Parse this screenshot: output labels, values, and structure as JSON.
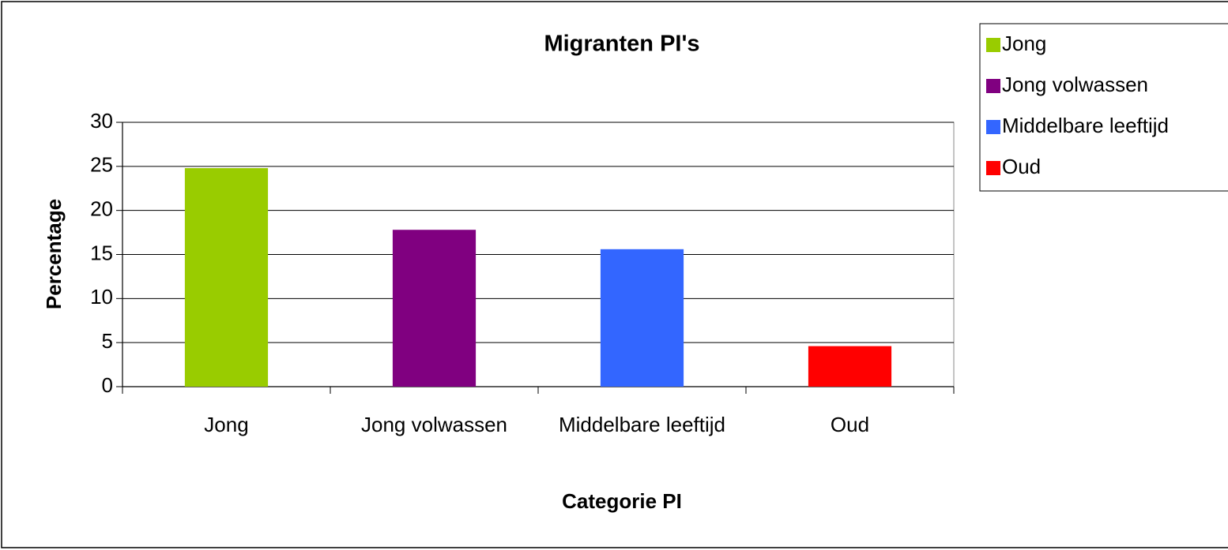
{
  "chart_data": {
    "type": "bar",
    "title": "Migranten PI's",
    "x_label": "Categorie PI",
    "y_label": "Percentage",
    "categories": [
      "Jong",
      "Jong volwassen",
      "Middelbare leeftijd",
      "Oud"
    ],
    "values": [
      24.8,
      17.8,
      15.6,
      4.6
    ],
    "colors": [
      "#99cc00",
      "#800080",
      "#3366ff",
      "#ff0000"
    ],
    "ylim": [
      0,
      30
    ],
    "yticks": [
      0,
      5,
      10,
      15,
      20,
      25,
      30
    ],
    "grid": true,
    "legend": "right"
  }
}
